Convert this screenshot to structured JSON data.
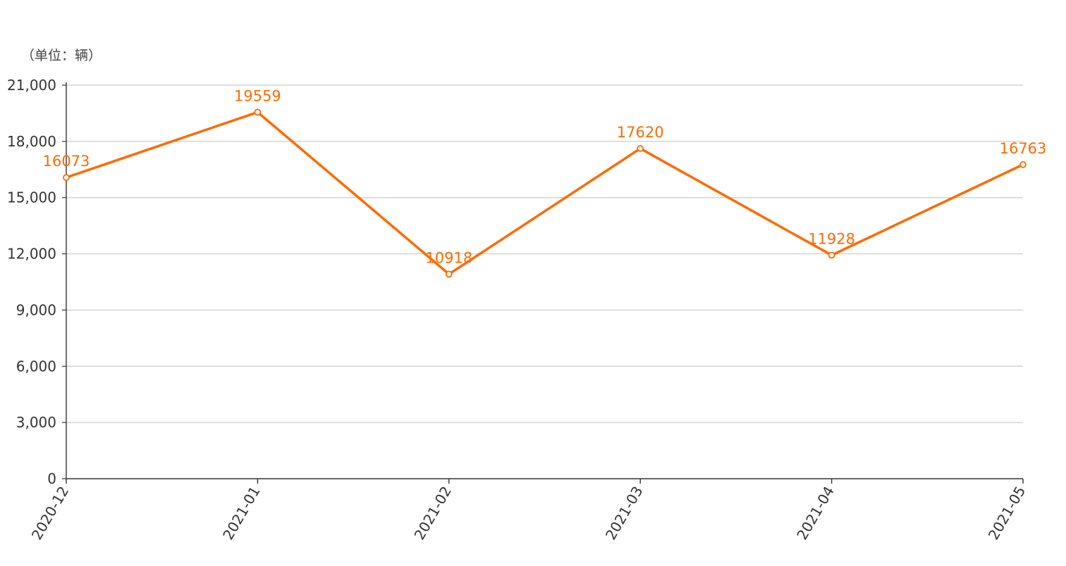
{
  "chart_data": {
    "type": "line",
    "unit_label": "（单位：辆）",
    "categories": [
      "2020-12",
      "2021-01",
      "2021-02",
      "2021-03",
      "2021-04",
      "2021-05"
    ],
    "series": [
      {
        "values": [
          16073,
          19559,
          10918,
          17620,
          11928,
          16763
        ]
      }
    ],
    "data_labels": [
      "16073",
      "19559",
      "10918",
      "17620",
      "11928",
      "16763"
    ],
    "ylim": [
      0,
      21000
    ],
    "y_ticks": [
      0,
      3000,
      6000,
      9000,
      12000,
      15000,
      18000,
      21000
    ],
    "y_tick_labels": [
      "0",
      "3,000",
      "6,000",
      "9,000",
      "12,000",
      "15,000",
      "18,000",
      "21,000"
    ],
    "grid": true,
    "legend": "none",
    "colors": {
      "series": "#FF6A00",
      "grid": "#CCCCCC",
      "axis": "#333333",
      "text": "#333333"
    }
  }
}
